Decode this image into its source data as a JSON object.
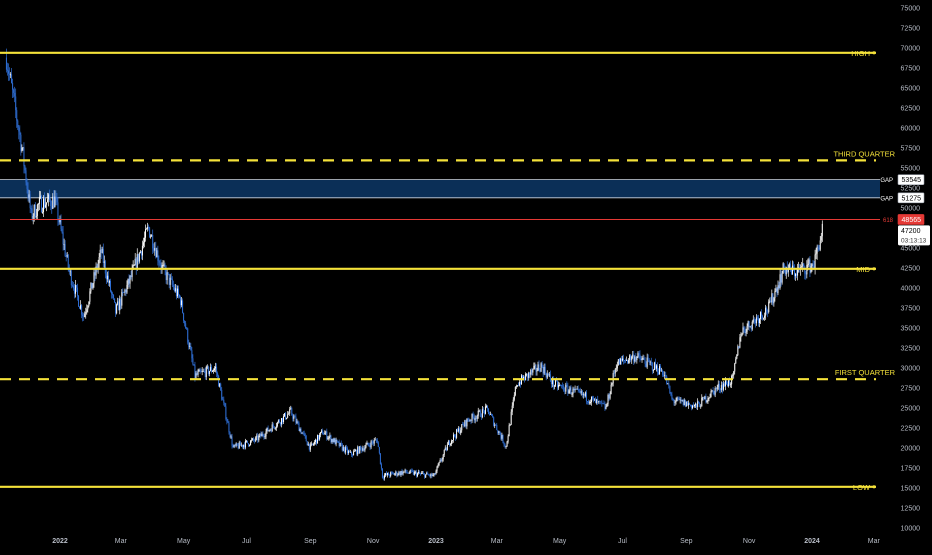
{
  "chart_data": {
    "type": "candlestick",
    "title": "",
    "xlabel": "",
    "ylabel": "",
    "ylim": [
      10000,
      75000
    ],
    "y_ticks": [
      75000,
      72500,
      70000,
      67500,
      65000,
      62500,
      60000,
      57500,
      55000,
      52500,
      50000,
      47500,
      45000,
      42500,
      40000,
      37500,
      35000,
      32500,
      30000,
      27500,
      25000,
      22500,
      20000,
      17500,
      15000,
      12500,
      10000
    ],
    "x_ticks": [
      {
        "label": "2022",
        "date": "2022-01-01",
        "bold": true
      },
      {
        "label": "Mar",
        "date": "2022-03-01",
        "bold": false
      },
      {
        "label": "May",
        "date": "2022-05-01",
        "bold": false
      },
      {
        "label": "Jul",
        "date": "2022-07-01",
        "bold": false
      },
      {
        "label": "Sep",
        "date": "2022-09-01",
        "bold": false
      },
      {
        "label": "Nov",
        "date": "2022-11-01",
        "bold": false
      },
      {
        "label": "2023",
        "date": "2023-01-01",
        "bold": true
      },
      {
        "label": "Mar",
        "date": "2023-03-01",
        "bold": false
      },
      {
        "label": "May",
        "date": "2023-05-01",
        "bold": false
      },
      {
        "label": "Jul",
        "date": "2023-07-01",
        "bold": false
      },
      {
        "label": "Sep",
        "date": "2023-09-01",
        "bold": false
      },
      {
        "label": "Nov",
        "date": "2023-11-01",
        "bold": false
      },
      {
        "label": "2024",
        "date": "2024-01-01",
        "bold": true
      },
      {
        "label": "Mar",
        "date": "2024-03-01",
        "bold": false
      }
    ],
    "series": [
      {
        "candle_interval": "1d",
        "up_color": "#ffffff",
        "down_color": "#2f6fd6",
        "key_points": [
          [
            "2021-11-10",
            68800
          ],
          [
            "2021-11-25",
            57500
          ],
          [
            "2021-12-04",
            49000
          ],
          [
            "2021-12-12",
            50500
          ],
          [
            "2021-12-27",
            51000
          ],
          [
            "2022-01-10",
            42000
          ],
          [
            "2022-01-24",
            36500
          ],
          [
            "2022-02-10",
            44500
          ],
          [
            "2022-02-24",
            37000
          ],
          [
            "2022-03-10",
            41000
          ],
          [
            "2022-03-28",
            47500
          ],
          [
            "2022-04-10",
            42500
          ],
          [
            "2022-04-28",
            38500
          ],
          [
            "2022-05-12",
            29000
          ],
          [
            "2022-06-01",
            30000
          ],
          [
            "2022-06-18",
            20000
          ],
          [
            "2022-07-10",
            21000
          ],
          [
            "2022-08-13",
            24500
          ],
          [
            "2022-09-01",
            20000
          ],
          [
            "2022-09-13",
            22000
          ],
          [
            "2022-10-10",
            19200
          ],
          [
            "2022-11-05",
            21000
          ],
          [
            "2022-11-10",
            16500
          ],
          [
            "2022-12-01",
            17000
          ],
          [
            "2022-12-30",
            16500
          ],
          [
            "2023-01-14",
            20800
          ],
          [
            "2023-02-01",
            23500
          ],
          [
            "2023-02-20",
            24800
          ],
          [
            "2023-03-10",
            20200
          ],
          [
            "2023-03-20",
            28000
          ],
          [
            "2023-04-13",
            30300
          ],
          [
            "2023-04-25",
            28000
          ],
          [
            "2023-05-25",
            26500
          ],
          [
            "2023-06-15",
            25000
          ],
          [
            "2023-06-25",
            30500
          ],
          [
            "2023-07-13",
            31500
          ],
          [
            "2023-08-10",
            29500
          ],
          [
            "2023-08-18",
            26000
          ],
          [
            "2023-09-11",
            25200
          ],
          [
            "2023-10-01",
            27500
          ],
          [
            "2023-10-16",
            28500
          ],
          [
            "2023-10-24",
            34500
          ],
          [
            "2023-11-20",
            37500
          ],
          [
            "2023-12-05",
            42500
          ],
          [
            "2023-12-15",
            42000
          ],
          [
            "2024-01-03",
            43000
          ],
          [
            "2024-01-11",
            47200
          ]
        ]
      }
    ],
    "horizontal_levels": [
      {
        "label": "HIGH",
        "value": 69400,
        "style": "solid",
        "color": "#f5e23a"
      },
      {
        "label": "THIRD QUARTER",
        "value": 55950,
        "style": "dashed",
        "color": "#f5e23a"
      },
      {
        "label": "MID",
        "value": 42400,
        "style": "solid",
        "color": "#f5e23a"
      },
      {
        "label": "FIRST QUARTER",
        "value": 28600,
        "style": "dashed",
        "color": "#f5e23a"
      },
      {
        "label": "LOW",
        "value": 15150,
        "style": "solid",
        "color": "#f5e23a"
      }
    ],
    "gap_zone": {
      "upper_label": "GAP",
      "upper_value": 53545,
      "lower_label": "GAP",
      "lower_value": 51275,
      "fill": "#0b2f57"
    },
    "fib_level": {
      "label": "618",
      "value": 48565,
      "color": "#e53935"
    },
    "last_price": {
      "value": "47200",
      "countdown": "03:13:13"
    }
  }
}
